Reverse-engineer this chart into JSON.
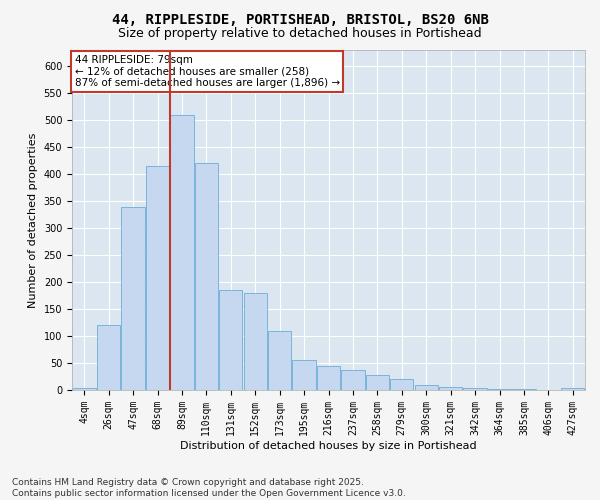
{
  "title_line1": "44, RIPPLESIDE, PORTISHEAD, BRISTOL, BS20 6NB",
  "title_line2": "Size of property relative to detached houses in Portishead",
  "xlabel": "Distribution of detached houses by size in Portishead",
  "ylabel": "Number of detached properties",
  "categories": [
    "4sqm",
    "26sqm",
    "47sqm",
    "68sqm",
    "89sqm",
    "110sqm",
    "131sqm",
    "152sqm",
    "173sqm",
    "195sqm",
    "216sqm",
    "237sqm",
    "258sqm",
    "279sqm",
    "300sqm",
    "321sqm",
    "342sqm",
    "364sqm",
    "385sqm",
    "406sqm",
    "427sqm"
  ],
  "bar_heights": [
    4,
    120,
    340,
    415,
    510,
    420,
    185,
    180,
    110,
    55,
    45,
    37,
    27,
    20,
    10,
    6,
    4,
    2,
    1,
    0,
    3
  ],
  "bar_color": "#c5d8f0",
  "bar_edge_color": "#6baed6",
  "vline_x": 3.5,
  "vline_color": "#c0392b",
  "annotation_text": "44 RIPPLESIDE: 79sqm\n← 12% of detached houses are smaller (258)\n87% of semi-detached houses are larger (1,896) →",
  "annotation_box_color": "#ffffff",
  "annotation_box_edge_color": "#c0392b",
  "ylim": [
    0,
    630
  ],
  "yticks": [
    0,
    50,
    100,
    150,
    200,
    250,
    300,
    350,
    400,
    450,
    500,
    550,
    600
  ],
  "background_color": "#dce6f0",
  "grid_color": "#ffffff",
  "footer_text": "Contains HM Land Registry data © Crown copyright and database right 2025.\nContains public sector information licensed under the Open Government Licence v3.0.",
  "title_fontsize": 10,
  "subtitle_fontsize": 9,
  "axis_label_fontsize": 8,
  "tick_fontsize": 7,
  "footer_fontsize": 6.5,
  "annotation_fontsize": 7.5
}
